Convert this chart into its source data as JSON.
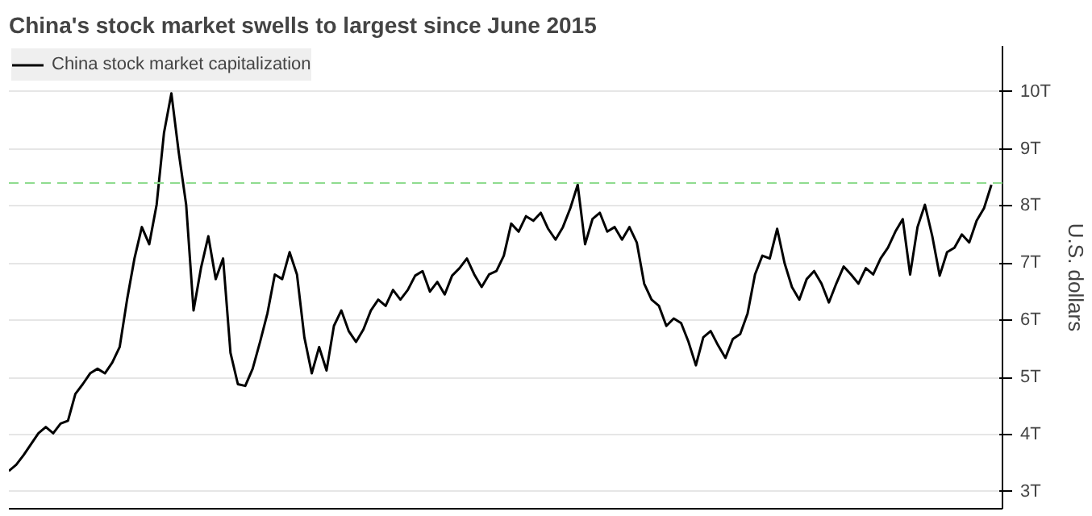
{
  "chart_data": {
    "type": "line",
    "title": "China's stock market swells to largest since June 2015",
    "ylabel": "U.S. dollars",
    "categories": [
      null,
      null,
      null,
      null,
      null,
      null,
      null,
      null,
      null,
      null,
      null,
      null,
      null,
      null,
      null,
      null,
      null,
      null,
      null,
      null,
      null,
      null,
      null,
      null,
      null,
      null,
      null,
      null,
      null,
      null,
      null,
      null,
      null,
      null,
      null,
      null,
      null,
      null,
      null,
      null,
      null,
      null,
      null,
      null,
      null,
      null,
      null,
      null,
      null,
      null,
      null,
      null,
      null,
      null,
      null,
      null,
      null,
      null,
      null,
      null,
      null,
      null,
      null,
      null,
      null,
      null,
      null,
      null,
      null,
      null,
      null,
      null,
      null,
      null,
      null,
      null,
      null,
      null,
      null,
      null,
      null,
      null,
      null,
      null,
      null,
      null,
      null,
      null,
      null,
      null,
      null,
      null,
      null,
      null,
      null,
      null,
      null,
      null,
      null,
      null,
      null,
      null,
      null,
      null,
      null,
      null,
      null,
      null,
      null,
      null,
      null,
      null,
      null,
      null,
      null,
      null,
      null,
      null,
      null,
      null,
      null,
      null,
      null,
      null,
      null,
      null,
      null,
      null,
      null,
      null,
      null,
      null,
      null,
      null
    ],
    "series": [
      {
        "name": "China stock market capitalization",
        "color": "#000000",
        "values": [
          3.36,
          3.47,
          3.64,
          3.83,
          4.02,
          4.13,
          4.02,
          4.19,
          4.24,
          4.71,
          4.88,
          5.07,
          5.15,
          5.07,
          5.26,
          5.53,
          6.36,
          7.08,
          7.63,
          7.33,
          8.02,
          9.28,
          9.97,
          8.93,
          8.02,
          6.17,
          6.91,
          7.47,
          6.72,
          7.08,
          5.43,
          4.88,
          4.85,
          5.15,
          5.62,
          6.12,
          6.8,
          6.72,
          7.19,
          6.8,
          5.7,
          5.07,
          5.53,
          5.12,
          5.9,
          6.17,
          5.81,
          5.62,
          5.84,
          6.17,
          6.36,
          6.25,
          6.53,
          6.36,
          6.53,
          6.78,
          6.86,
          6.5,
          6.67,
          6.45,
          6.78,
          6.91,
          7.08,
          6.8,
          6.58,
          6.8,
          6.86,
          7.13,
          7.69,
          7.55,
          7.82,
          7.74,
          7.88,
          7.6,
          7.41,
          7.63,
          7.96,
          8.37,
          7.33,
          7.77,
          7.88,
          7.55,
          7.63,
          7.41,
          7.63,
          7.36,
          6.64,
          6.36,
          6.25,
          5.9,
          6.03,
          5.95,
          5.62,
          5.21,
          5.7,
          5.81,
          5.56,
          5.34,
          5.67,
          5.76,
          6.12,
          6.8,
          7.13,
          7.08,
          7.6,
          7.0,
          6.58,
          6.36,
          6.72,
          6.86,
          6.64,
          6.31,
          6.64,
          6.94,
          6.8,
          6.64,
          6.91,
          6.8,
          7.08,
          7.27,
          7.55,
          7.77,
          6.8,
          7.63,
          8.02,
          7.47,
          6.78,
          7.19,
          7.27,
          7.5,
          7.36,
          7.74,
          7.96,
          8.37
        ]
      }
    ],
    "ylim": [
      2.7,
      10.8
    ],
    "yticks": [
      {
        "value": 3,
        "label": "3T"
      },
      {
        "value": 4,
        "label": "4T"
      },
      {
        "value": 5,
        "label": "5T"
      },
      {
        "value": 6,
        "label": "6T"
      },
      {
        "value": 7,
        "label": "7T"
      },
      {
        "value": 8,
        "label": "8T"
      },
      {
        "value": 9,
        "label": "9T"
      },
      {
        "value": 10,
        "label": "10T"
      }
    ],
    "ref_lines": [
      {
        "axis": "y",
        "value": 8.4,
        "color": "#8fdc8f",
        "line_style": "dashed"
      }
    ],
    "grid": "y",
    "legend": "top left",
    "line_style": "solid",
    "marker": "none"
  }
}
